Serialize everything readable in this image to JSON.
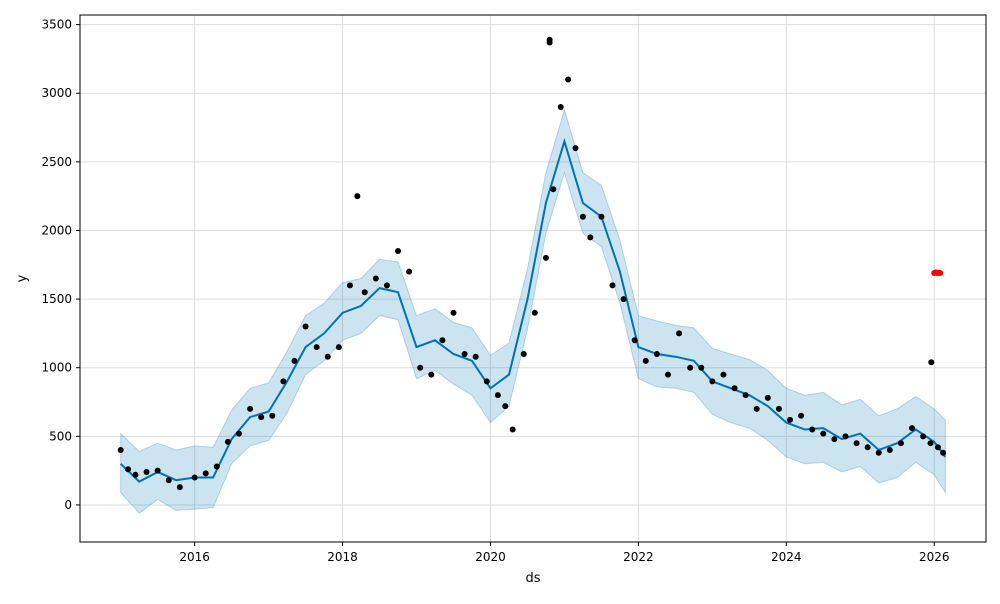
{
  "chart_data": {
    "type": "line",
    "title": "",
    "xlabel": "ds",
    "ylabel": "y",
    "xlim": [
      2014.45,
      2026.7
    ],
    "ylim": [
      -270,
      3570
    ],
    "xticks": [
      2016,
      2018,
      2020,
      2022,
      2024,
      2026
    ],
    "xtick_labels": [
      "2016",
      "2018",
      "2020",
      "2022",
      "2024",
      "2026"
    ],
    "yticks": [
      0,
      500,
      1000,
      1500,
      2000,
      2500,
      3000,
      3500
    ],
    "ytick_labels": [
      "0",
      "500",
      "1000",
      "1500",
      "2000",
      "2500",
      "3000",
      "3500"
    ],
    "grid": true,
    "colors": {
      "forecast": "#0072B2",
      "interval": "#0072B2",
      "observed": "#000000",
      "highlight": "#ff0000",
      "grid": "#dddddd"
    },
    "forecast": {
      "x": [
        2015.0,
        2015.25,
        2015.5,
        2015.75,
        2016.0,
        2016.25,
        2016.5,
        2016.75,
        2017.0,
        2017.25,
        2017.5,
        2017.75,
        2018.0,
        2018.25,
        2018.5,
        2018.75,
        2019.0,
        2019.25,
        2019.5,
        2019.75,
        2020.0,
        2020.25,
        2020.5,
        2020.75,
        2021.0,
        2021.25,
        2021.5,
        2021.75,
        2022.0,
        2022.25,
        2022.5,
        2022.75,
        2023.0,
        2023.25,
        2023.5,
        2023.75,
        2024.0,
        2024.25,
        2024.5,
        2024.75,
        2025.0,
        2025.25,
        2025.5,
        2025.75,
        2026.0,
        2026.15
      ],
      "yhat": [
        300,
        170,
        240,
        180,
        200,
        200,
        480,
        640,
        680,
        900,
        1150,
        1250,
        1400,
        1450,
        1580,
        1550,
        1150,
        1200,
        1100,
        1050,
        850,
        950,
        1500,
        2200,
        2650,
        2200,
        2100,
        1700,
        1150,
        1100,
        1080,
        1050,
        900,
        850,
        800,
        720,
        600,
        550,
        560,
        480,
        520,
        400,
        450,
        550,
        460,
        350
      ],
      "lower": [
        90,
        -60,
        40,
        -40,
        -30,
        -20,
        300,
        430,
        470,
        670,
        950,
        1050,
        1200,
        1250,
        1380,
        1350,
        920,
        980,
        880,
        800,
        600,
        720,
        1280,
        1980,
        2420,
        1980,
        1880,
        1470,
        920,
        860,
        850,
        820,
        660,
        600,
        560,
        470,
        350,
        300,
        310,
        240,
        280,
        160,
        200,
        310,
        220,
        90
      ],
      "upper": [
        520,
        390,
        450,
        400,
        430,
        420,
        690,
        850,
        890,
        1120,
        1380,
        1470,
        1620,
        1650,
        1790,
        1770,
        1380,
        1430,
        1330,
        1290,
        1090,
        1180,
        1720,
        2420,
        2880,
        2420,
        2330,
        1930,
        1380,
        1340,
        1310,
        1290,
        1140,
        1100,
        1060,
        980,
        850,
        800,
        820,
        730,
        770,
        650,
        700,
        790,
        700,
        620
      ]
    },
    "observed": {
      "name": "",
      "x": [
        2015.0,
        2015.1,
        2015.2,
        2015.35,
        2015.5,
        2015.65,
        2015.8,
        2016.0,
        2016.15,
        2016.3,
        2016.45,
        2016.6,
        2016.75,
        2016.9,
        2017.05,
        2017.2,
        2017.35,
        2017.5,
        2017.65,
        2017.8,
        2017.95,
        2018.1,
        2018.2,
        2018.3,
        2018.45,
        2018.6,
        2018.75,
        2018.9,
        2019.05,
        2019.2,
        2019.35,
        2019.5,
        2019.65,
        2019.8,
        2019.95,
        2020.1,
        2020.2,
        2020.3,
        2020.45,
        2020.6,
        2020.75,
        2020.85,
        2020.95,
        2021.05,
        2021.15,
        2021.25,
        2021.35,
        2021.5,
        2021.65,
        2021.8,
        2021.95,
        2022.1,
        2022.25,
        2022.4,
        2022.55,
        2022.7,
        2022.85,
        2023.0,
        2023.15,
        2023.3,
        2023.45,
        2023.6,
        2023.75,
        2023.9,
        2024.05,
        2024.2,
        2024.35,
        2024.5,
        2024.65,
        2024.8,
        2024.95,
        2025.1,
        2025.25,
        2025.4,
        2025.55,
        2025.7,
        2025.85,
        2025.95,
        2026.05,
        2026.12
      ],
      "y": [
        400,
        260,
        220,
        240,
        250,
        180,
        130,
        200,
        230,
        280,
        460,
        520,
        700,
        640,
        650,
        900,
        1050,
        1300,
        1150,
        1080,
        1150,
        1600,
        2250,
        1550,
        1650,
        1600,
        1850,
        1700,
        1000,
        950,
        1200,
        1400,
        1100,
        1080,
        900,
        800,
        720,
        550,
        1100,
        1400,
        1800,
        2300,
        2900,
        3100,
        2600,
        2100,
        1950,
        2100,
        1600,
        1500,
        1200,
        1050,
        1100,
        950,
        1250,
        1000,
        1000,
        900,
        950,
        850,
        800,
        700,
        780,
        700,
        620,
        650,
        550,
        520,
        480,
        500,
        450,
        420,
        380,
        400,
        450,
        560,
        500,
        450,
        420,
        380
      ]
    },
    "outliers": {
      "x": [
        2020.8,
        2020.8,
        2025.96
      ],
      "y": [
        3390,
        3370,
        1040
      ]
    },
    "highlight": {
      "x": [
        2026.0,
        2026.02,
        2026.04,
        2026.06,
        2026.08
      ],
      "y": [
        1690,
        1695,
        1690,
        1692,
        1690
      ]
    }
  }
}
